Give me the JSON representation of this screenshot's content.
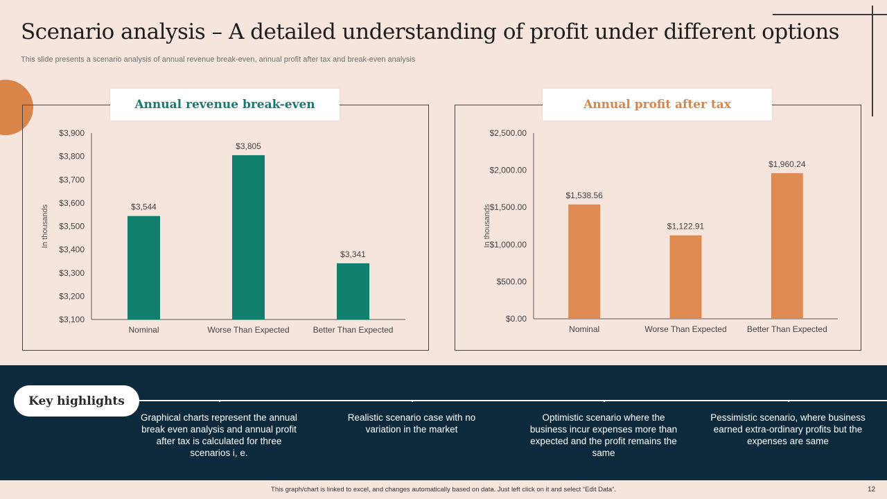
{
  "slide": {
    "title": "Scenario analysis – A detailed understanding of profit under different options",
    "subtitle": "This slide presents a scenario analysis of annual revenue break-even, annual profit after tax  and break-even analysis",
    "footer": "This graph/chart is linked to excel, and changes automatically based on data. Just left click on it and select “Edit Data”.",
    "page_number": "12"
  },
  "colors": {
    "teal": "#107f6e",
    "orange": "#de8a51",
    "background": "#f6e5dc",
    "navy": "#0d2a3c"
  },
  "chart_data": [
    {
      "type": "bar",
      "title": "Annual revenue break-even",
      "ylabel": "In thousands",
      "xlabel": "",
      "categories": [
        "Nominal",
        "Worse Than Expected",
        "Better Than Expected"
      ],
      "values": [
        3544,
        3805,
        3341
      ],
      "value_labels": [
        "$3,544",
        "$3,805",
        "$3,341"
      ],
      "ylim": [
        3100,
        3900
      ],
      "yticks": [
        3100,
        3200,
        3300,
        3400,
        3500,
        3600,
        3700,
        3800,
        3900
      ],
      "ytick_labels": [
        "$3,100",
        "$3,200",
        "$3,300",
        "$3,400",
        "$3,500",
        "$3,600",
        "$3,700",
        "$3,800",
        "$3,900"
      ],
      "color": "#107f6e",
      "grid": false,
      "legend": "none"
    },
    {
      "type": "bar",
      "title": "Annual profit after tax",
      "ylabel": "In thousands",
      "xlabel": "",
      "categories": [
        "Nominal",
        "Worse Than Expected",
        "Better Than Expected"
      ],
      "values": [
        1538.56,
        1122.91,
        1960.24
      ],
      "value_labels": [
        "$1,538.56",
        "$1,122.91",
        "$1,960.24"
      ],
      "ylim": [
        0,
        2500
      ],
      "yticks": [
        0,
        500,
        1000,
        1500,
        2000,
        2500
      ],
      "ytick_labels": [
        "$0.00",
        "$500.00",
        "$1,000.00",
        "$1,500.00",
        "$2,000.00",
        "$2,500.00"
      ],
      "color": "#de8a51",
      "grid": false,
      "legend": "none"
    }
  ],
  "highlights": {
    "label": "Key highlights",
    "items": [
      "Graphical charts represent the annual break even analysis and annual profit after tax is calculated for three scenarios i, e.",
      "Realistic scenario case with no variation in the market",
      "Optimistic scenario where the business incur expenses more than expected and the profit remains the same",
      "Pessimistic scenario, where business earned extra-ordinary profits but the expenses are same"
    ]
  }
}
